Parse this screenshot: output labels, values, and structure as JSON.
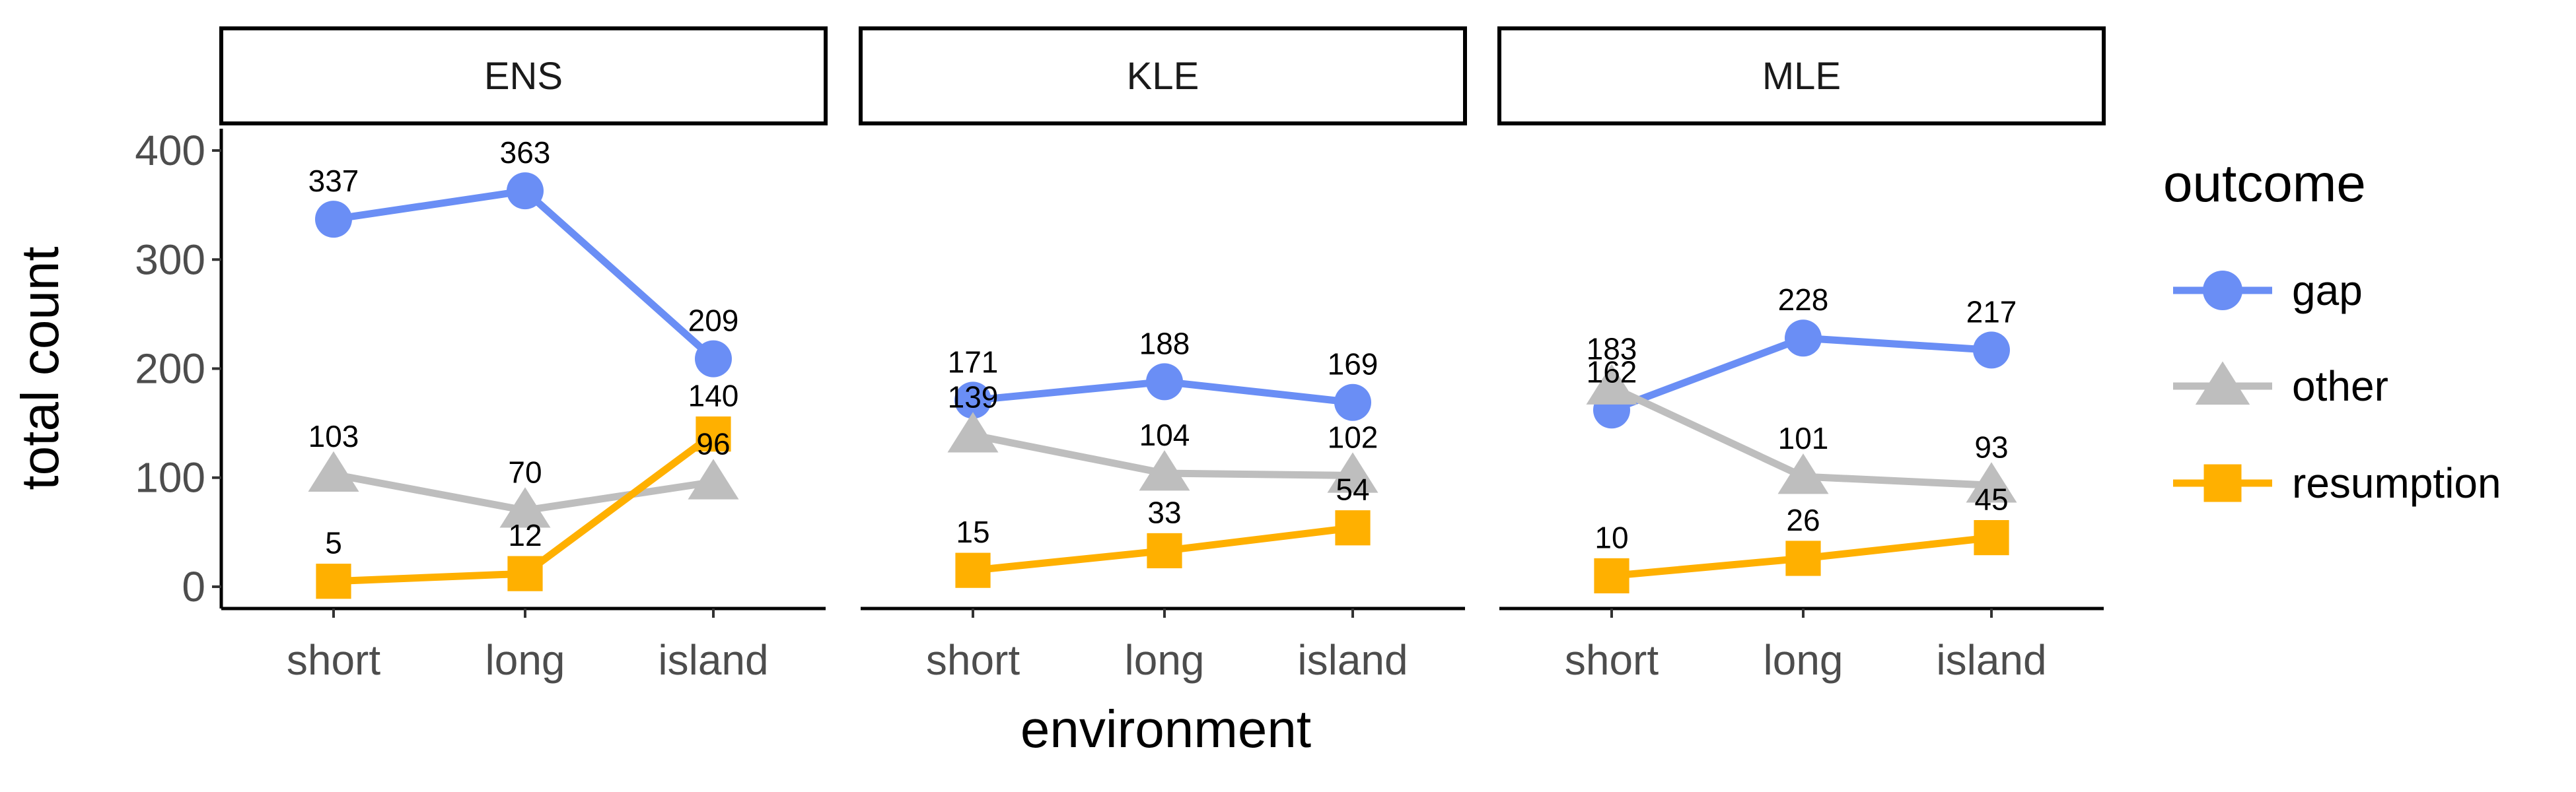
{
  "chart_data": {
    "type": "line",
    "facet_variable_values": [
      "ENS",
      "KLE",
      "MLE"
    ],
    "categories": [
      "short",
      "long",
      "island"
    ],
    "xlabel": "environment",
    "ylabel": "total count",
    "ylim": [
      -20,
      420
    ],
    "yticks": [
      0,
      100,
      200,
      300,
      400
    ],
    "legend": {
      "title": "outcome",
      "placement": "right",
      "items": [
        "gap",
        "other",
        "resumption"
      ]
    },
    "series_styles": {
      "gap": {
        "color": "#6A8EF5",
        "marker": "circle"
      },
      "other": {
        "color": "#BEBEBE",
        "marker": "triangle"
      },
      "resumption": {
        "color": "#FFB000",
        "marker": "square"
      }
    },
    "panels": [
      {
        "facet": "ENS",
        "series": [
          {
            "name": "gap",
            "values": [
              337,
              363,
              209
            ]
          },
          {
            "name": "other",
            "values": [
              103,
              70,
              96
            ]
          },
          {
            "name": "resumption",
            "values": [
              5,
              12,
              140
            ]
          }
        ]
      },
      {
        "facet": "KLE",
        "series": [
          {
            "name": "gap",
            "values": [
              171,
              188,
              169
            ]
          },
          {
            "name": "other",
            "values": [
              139,
              104,
              102
            ]
          },
          {
            "name": "resumption",
            "values": [
              15,
              33,
              54
            ]
          }
        ]
      },
      {
        "facet": "MLE",
        "series": [
          {
            "name": "gap",
            "values": [
              162,
              228,
              217
            ]
          },
          {
            "name": "other",
            "values": [
              183,
              101,
              93
            ]
          },
          {
            "name": "resumption",
            "values": [
              10,
              26,
              45
            ]
          }
        ]
      }
    ]
  }
}
